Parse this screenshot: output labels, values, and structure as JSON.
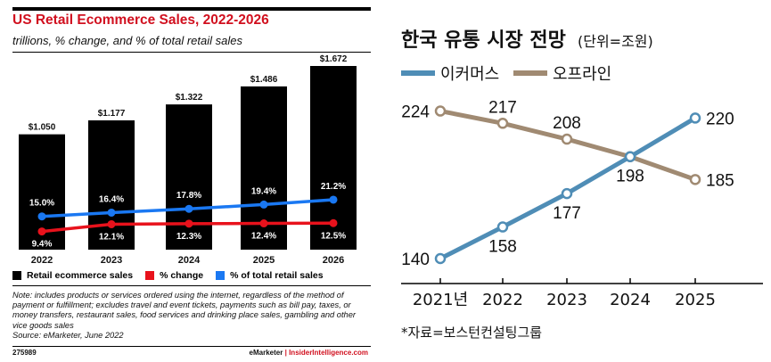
{
  "left": {
    "title": "US Retail Ecommerce Sales, 2022-2026",
    "subtitle": "trillions, % change, and % of total retail sales",
    "legend": [
      "Retail ecommerce sales",
      "% change",
      "% of total retail sales"
    ],
    "note": "Note: includes products or services ordered using the internet, regardless of the method of payment or fulfillment; excludes travel and event tickets, payments such as bill pay, taxes, or money transfers, restaurant sales, food services and drinking place sales, gambling and other vice goods sales",
    "source": "Source: eMarketer, June 2022",
    "chart_id": "275989",
    "brand_1": "eMarketer",
    "brand_sep": "|",
    "brand_2": "InsiderIntelligence.com",
    "colors": {
      "title": "#d1101f",
      "bars": "#000000",
      "change": "#e8121c",
      "share": "#1a78f2"
    }
  },
  "right": {
    "title": "한국 유통 시장 전망",
    "unit": "(단위=조원)",
    "legend": [
      "이커머스",
      "오프라인"
    ],
    "source": "*자료=보스턴컨설팅그룹",
    "colors": {
      "ecommerce": "#4f8db6",
      "offline": "#a08a72"
    }
  },
  "chart_data": [
    {
      "type": "bar",
      "title": "US Retail Ecommerce Sales, 2022-2026",
      "subtitle": "trillions, % change, and % of total retail sales",
      "categories": [
        "2022",
        "2023",
        "2024",
        "2025",
        "2026"
      ],
      "series": [
        {
          "name": "Retail ecommerce sales",
          "type": "bar",
          "values": [
            1.05,
            1.177,
            1.322,
            1.486,
            1.672
          ],
          "labels": [
            "$1.050",
            "$1.177",
            "$1.322",
            "$1.486",
            "$1.672"
          ]
        },
        {
          "name": "% change",
          "type": "line",
          "values": [
            9.4,
            12.1,
            12.3,
            12.4,
            12.5
          ],
          "labels": [
            "9.4%",
            "12.1%",
            "12.3%",
            "12.4%",
            "12.5%"
          ]
        },
        {
          "name": "% of total retail sales",
          "type": "line",
          "values": [
            15.0,
            16.4,
            17.8,
            19.4,
            21.2
          ],
          "labels": [
            "15.0%",
            "16.4%",
            "17.8%",
            "19.4%",
            "21.2%"
          ]
        }
      ],
      "legend_position": "bottom",
      "grid": false
    },
    {
      "type": "line",
      "title": "한국 유통 시장 전망",
      "unit": "(단위=조원)",
      "categories": [
        "2021년",
        "2022",
        "2023",
        "2024",
        "2025"
      ],
      "series": [
        {
          "name": "이커머스",
          "values": [
            140,
            158,
            177,
            198,
            220
          ]
        },
        {
          "name": "오프라인",
          "values": [
            224,
            217,
            208,
            198,
            185
          ]
        }
      ],
      "legend_position": "top-left",
      "grid": false
    }
  ]
}
